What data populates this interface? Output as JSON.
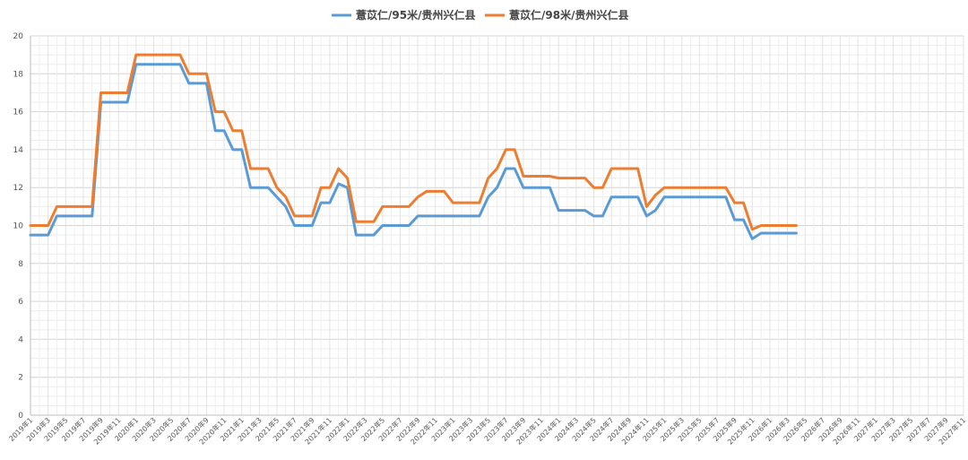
{
  "chart_data": {
    "type": "line",
    "title": "",
    "xlabel": "",
    "ylabel": "",
    "ylim": [
      0,
      20
    ],
    "yticks": [
      0,
      2,
      4,
      6,
      8,
      10,
      12,
      14,
      16,
      18,
      20
    ],
    "grid": true,
    "legend_position": "top-center",
    "x_tick_labels": [
      "2019年1",
      "2019年3",
      "2019年5",
      "2019年7",
      "2019年9",
      "2019年11",
      "2020年1",
      "2020年3",
      "2020年5",
      "2020年7",
      "2020年9",
      "2020年11",
      "2021年1",
      "2021年3",
      "2021年5",
      "2021年7",
      "2021年9",
      "2021年11",
      "2022年1",
      "2022年3",
      "2022年5",
      "2022年7",
      "2022年9",
      "2022年11",
      "2023年1",
      "2023年3",
      "2023年5",
      "2023年7",
      "2023年9",
      "2023年11",
      "2024年1",
      "2024年3",
      "2024年5",
      "2024年7",
      "2024年9",
      "2024年11",
      "2025年1",
      "2025年3",
      "2025年5",
      "2025年7",
      "2025年9",
      "2025年11",
      "2026年1",
      "2026年3",
      "2026年5",
      "2026年7",
      "2026年9",
      "2026年11",
      "2027年1",
      "2027年3",
      "2027年5",
      "2027年7",
      "2027年9",
      "2027年11"
    ],
    "series": [
      {
        "name": "薏苡仁/95米/贵州兴仁县",
        "color": "#5b9bd5",
        "points": [
          [
            "2019-01",
            9.5
          ],
          [
            "2019-03",
            9.5
          ],
          [
            "2019-04",
            10.5
          ],
          [
            "2019-05",
            10.5
          ],
          [
            "2019-08",
            10.5
          ],
          [
            "2019-09",
            16.5
          ],
          [
            "2019-12",
            16.5
          ],
          [
            "2020-01",
            18.5
          ],
          [
            "2020-06",
            18.5
          ],
          [
            "2020-07",
            17.5
          ],
          [
            "2020-09",
            17.5
          ],
          [
            "2020-10",
            15
          ],
          [
            "2020-11",
            15
          ],
          [
            "2020-12",
            14
          ],
          [
            "2021-01",
            14
          ],
          [
            "2021-02",
            12
          ],
          [
            "2021-04",
            12
          ],
          [
            "2021-06",
            11
          ],
          [
            "2021-07",
            10
          ],
          [
            "2021-09",
            10
          ],
          [
            "2021-10",
            11.2
          ],
          [
            "2021-11",
            11.2
          ],
          [
            "2021-12",
            12.2
          ],
          [
            "2022-01",
            12
          ],
          [
            "2022-02",
            9.5
          ],
          [
            "2022-04",
            9.5
          ],
          [
            "2022-05",
            10
          ],
          [
            "2022-08",
            10
          ],
          [
            "2022-09",
            10.5
          ],
          [
            "2023-04",
            10.5
          ],
          [
            "2023-05",
            11.5
          ],
          [
            "2023-06",
            12
          ],
          [
            "2023-07",
            13
          ],
          [
            "2023-08",
            13
          ],
          [
            "2023-09",
            12
          ],
          [
            "2023-12",
            12
          ],
          [
            "2024-01",
            10.8
          ],
          [
            "2024-04",
            10.8
          ],
          [
            "2024-05",
            10.5
          ],
          [
            "2024-06",
            10.5
          ],
          [
            "2024-07",
            11.5
          ],
          [
            "2024-10",
            11.5
          ],
          [
            "2024-11",
            10.5
          ],
          [
            "2024-12",
            10.8
          ],
          [
            "2025-01",
            11.5
          ],
          [
            "2025-08",
            11.5
          ],
          [
            "2025-09",
            10.3
          ],
          [
            "2025-10",
            10.3
          ],
          [
            "2025-11",
            9.3
          ],
          [
            "2025-12",
            9.6
          ],
          [
            "2026-04",
            9.6
          ]
        ]
      },
      {
        "name": "薏苡仁/98米/贵州兴仁县",
        "color": "#ed7d31",
        "points": [
          [
            "2019-01",
            10
          ],
          [
            "2019-03",
            10
          ],
          [
            "2019-04",
            11
          ],
          [
            "2019-05",
            11
          ],
          [
            "2019-08",
            11
          ],
          [
            "2019-09",
            17
          ],
          [
            "2019-12",
            17
          ],
          [
            "2020-01",
            19
          ],
          [
            "2020-06",
            19
          ],
          [
            "2020-07",
            18
          ],
          [
            "2020-09",
            18
          ],
          [
            "2020-10",
            16
          ],
          [
            "2020-11",
            16
          ],
          [
            "2020-12",
            15
          ],
          [
            "2021-01",
            15
          ],
          [
            "2021-02",
            13
          ],
          [
            "2021-04",
            13
          ],
          [
            "2021-05",
            12
          ],
          [
            "2021-06",
            11.5
          ],
          [
            "2021-07",
            10.5
          ],
          [
            "2021-09",
            10.5
          ],
          [
            "2021-10",
            12
          ],
          [
            "2021-11",
            12
          ],
          [
            "2021-12",
            13
          ],
          [
            "2022-01",
            12.5
          ],
          [
            "2022-02",
            10.2
          ],
          [
            "2022-04",
            10.2
          ],
          [
            "2022-05",
            11
          ],
          [
            "2022-08",
            11
          ],
          [
            "2022-09",
            11.5
          ],
          [
            "2022-10",
            11.8
          ],
          [
            "2022-12",
            11.8
          ],
          [
            "2023-01",
            11.2
          ],
          [
            "2023-04",
            11.2
          ],
          [
            "2023-05",
            12.5
          ],
          [
            "2023-06",
            13
          ],
          [
            "2023-07",
            14
          ],
          [
            "2023-08",
            14
          ],
          [
            "2023-09",
            12.6
          ],
          [
            "2023-12",
            12.6
          ],
          [
            "2024-01",
            12.5
          ],
          [
            "2024-04",
            12.5
          ],
          [
            "2024-05",
            12
          ],
          [
            "2024-06",
            12
          ],
          [
            "2024-07",
            13
          ],
          [
            "2024-10",
            13
          ],
          [
            "2024-11",
            11
          ],
          [
            "2024-12",
            11.6
          ],
          [
            "2025-01",
            12
          ],
          [
            "2025-08",
            12
          ],
          [
            "2025-09",
            11.2
          ],
          [
            "2025-10",
            11.2
          ],
          [
            "2025-11",
            9.8
          ],
          [
            "2025-12",
            10
          ],
          [
            "2026-04",
            10
          ]
        ]
      }
    ]
  }
}
